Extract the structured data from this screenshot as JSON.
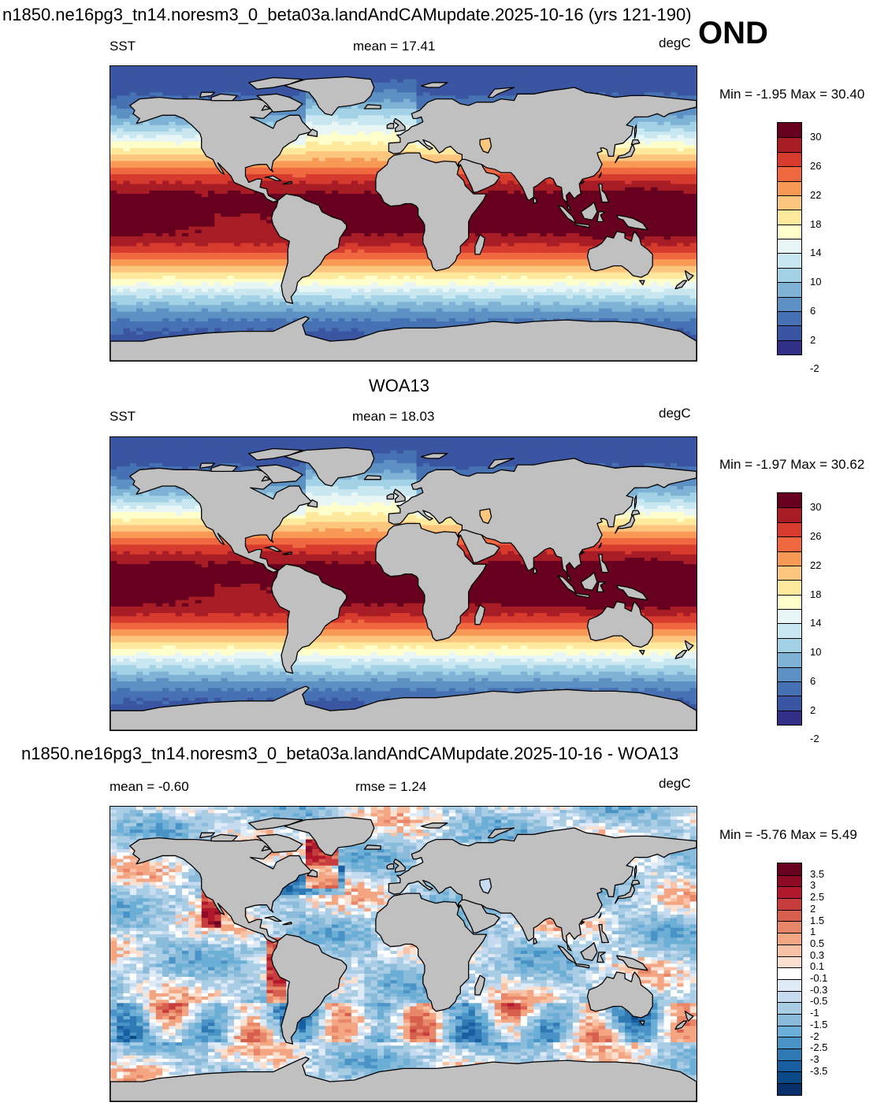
{
  "figure": {
    "title": "n1850.ne16pg3_tn14.noresm3_0_beta03a.landAndCAMupdate.2025-10-16 (yrs 121-190)",
    "season": "OND"
  },
  "panels": [
    {
      "title": "",
      "field": "SST",
      "stat1": "mean =  17.41",
      "stat2": "",
      "units": "degC",
      "minmax": "Min =  -1.95 Max =  30.40",
      "colorbar": {
        "labels": [
          "30",
          "26",
          "22",
          "18",
          "14",
          "10",
          "6",
          "2",
          "-2"
        ],
        "colors": [
          "#67001f",
          "#a81c26",
          "#d73b2e",
          "#ef6840",
          "#f89a55",
          "#fdc67e",
          "#fee99d",
          "#ffffcc",
          "#e8f6f6",
          "#c8e7f0",
          "#a3d2e6",
          "#7fb3d6",
          "#5d91c4",
          "#4672b3",
          "#3a55a1",
          "#323086"
        ]
      }
    },
    {
      "title": "WOA13",
      "field": "SST",
      "stat1": "mean =  18.03",
      "stat2": "",
      "units": "degC",
      "minmax": "Min =  -1.97 Max =  30.62",
      "colorbar": {
        "labels": [
          "30",
          "26",
          "22",
          "18",
          "14",
          "10",
          "6",
          "2",
          "-2"
        ],
        "colors": [
          "#67001f",
          "#a81c26",
          "#d73b2e",
          "#ef6840",
          "#f89a55",
          "#fdc67e",
          "#fee99d",
          "#ffffcc",
          "#e8f6f6",
          "#c8e7f0",
          "#a3d2e6",
          "#7fb3d6",
          "#5d91c4",
          "#4672b3",
          "#3a55a1",
          "#323086"
        ]
      }
    },
    {
      "title": "n1850.ne16pg3_tn14.noresm3_0_beta03a.landAndCAMupdate.2025-10-16 - WOA13",
      "field": "",
      "stat1": "mean =  -0.60",
      "stat2": "rmse =   1.24",
      "units": "degC",
      "minmax": "Min =  -5.76 Max =   5.49",
      "colorbar": {
        "labels": [
          "3.5",
          "3",
          "2.5",
          "2",
          "1.5",
          "1",
          "0.5",
          "0.3",
          "0.1",
          "-0.1",
          "-0.3",
          "-0.5",
          "-1",
          "-1.5",
          "-2",
          "-2.5",
          "-3",
          "-3.5"
        ],
        "colors": [
          "#67001f",
          "#8e0b25",
          "#b2182b",
          "#c73d3d",
          "#d6604d",
          "#e8866a",
          "#f4a582",
          "#f8c2a6",
          "#fbe0d0",
          "#ffffff",
          "#deebf7",
          "#c6dbef",
          "#a8cde4",
          "#8abbdb",
          "#6baed6",
          "#4a93c6",
          "#2f79b5",
          "#185ea1",
          "#0b4a87",
          "#08306b"
        ]
      }
    }
  ],
  "map_style": {
    "land": "#c0c0c0",
    "coast": "#000000"
  }
}
